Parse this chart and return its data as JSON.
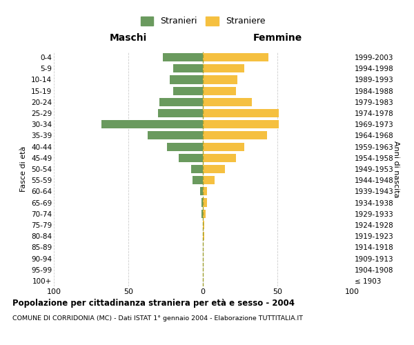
{
  "age_groups": [
    "100+",
    "95-99",
    "90-94",
    "85-89",
    "80-84",
    "75-79",
    "70-74",
    "65-69",
    "60-64",
    "55-59",
    "50-54",
    "45-49",
    "40-44",
    "35-39",
    "30-34",
    "25-29",
    "20-24",
    "15-19",
    "10-14",
    "5-9",
    "0-4"
  ],
  "birth_years": [
    "≤ 1903",
    "1904-1908",
    "1909-1913",
    "1914-1918",
    "1919-1923",
    "1924-1928",
    "1929-1933",
    "1934-1938",
    "1939-1943",
    "1944-1948",
    "1949-1953",
    "1954-1958",
    "1959-1963",
    "1964-1968",
    "1969-1973",
    "1974-1978",
    "1979-1983",
    "1984-1988",
    "1989-1993",
    "1994-1998",
    "1999-2003"
  ],
  "males": [
    0,
    0,
    0,
    0,
    0,
    0,
    1,
    1,
    2,
    7,
    8,
    16,
    24,
    37,
    68,
    30,
    29,
    20,
    22,
    20,
    27
  ],
  "females": [
    0,
    0,
    0,
    0,
    1,
    1,
    2,
    3,
    3,
    8,
    15,
    22,
    28,
    43,
    51,
    51,
    33,
    22,
    23,
    28,
    44
  ],
  "male_color": "#6a9a5e",
  "female_color": "#f5c040",
  "dashed_line_color": "#a0a030",
  "grid_color": "#cccccc",
  "bg_color": "#ffffff",
  "xlim": 100,
  "title_bold": "Popolazione per cittadinanza straniera per età e sesso - 2004",
  "subtitle": "COMUNE DI CORRIDONIA (MC) - Dati ISTAT 1° gennaio 2004 - Elaborazione TUTTITALIA.IT",
  "legend_stranieri": "Stranieri",
  "legend_straniere": "Straniere",
  "label_maschi": "Maschi",
  "label_femmine": "Femmine",
  "ylabel_left": "Fasce di età",
  "ylabel_right": "Anni di nascita"
}
